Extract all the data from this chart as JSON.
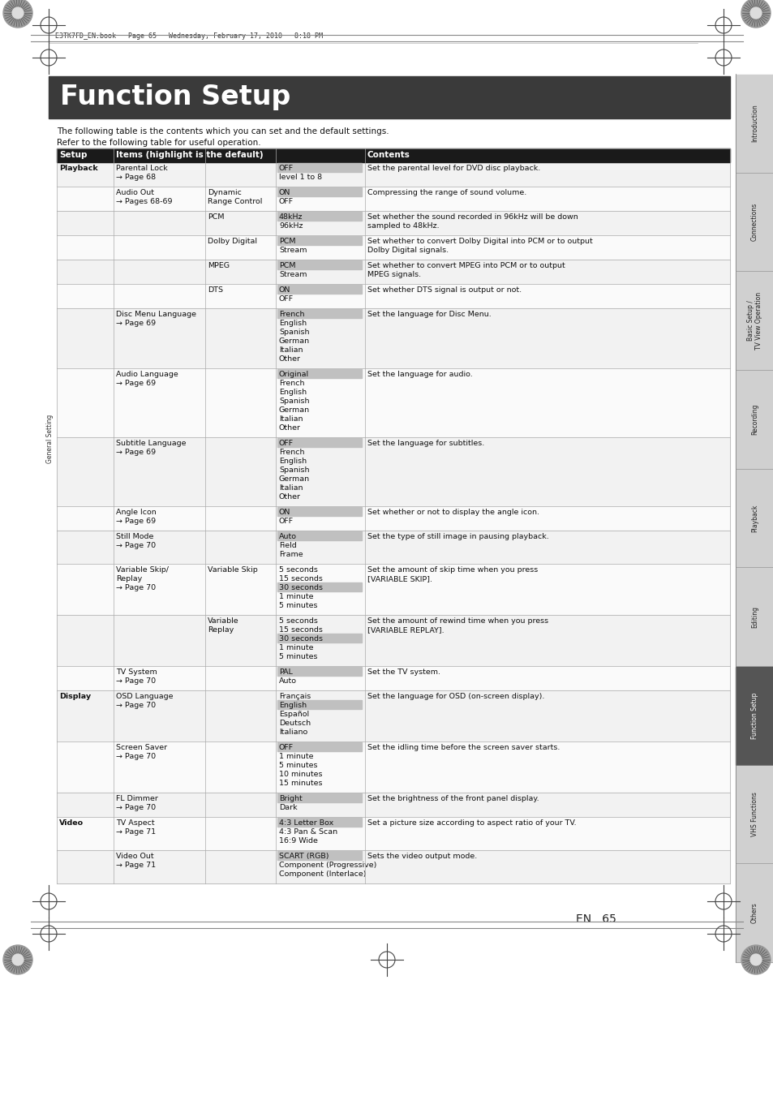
{
  "page_bg": "#ffffff",
  "title_text": "Function Setup",
  "title_bg": "#3a3a3a",
  "title_color": "#ffffff",
  "header_text": "E3TK7FD_EN.book   Page 65   Wednesday, February 17, 2010   8:18 PM",
  "footer_text": "EN   65",
  "intro_line1": "The following table is the contents which you can set and the default settings.",
  "intro_line2": "Refer to the following table for useful operation.",
  "col_header_bg": "#1a1a1a",
  "col_header_color": "#ffffff",
  "sidebar_labels": [
    "Introduction",
    "Connections",
    "Basic Setup /\nTV View Operation",
    "Recording",
    "Playback",
    "Editing",
    "Function Setup",
    "VHS Functions",
    "Others"
  ],
  "sidebar_active": "Function Setup",
  "sidebar_bg": "#d0d0d0",
  "sidebar_active_bg": "#555555",
  "sidebar_active_color": "#ffffff",
  "highlight_bg": "#c0c0c0",
  "table_rows": [
    {
      "setup": "Playback",
      "item1": "Parental Lock\n→ Page 68",
      "item2": "",
      "item3": "OFF\nlevel 1 to 8",
      "default_idx": 0,
      "contents": "Set the parental level for DVD disc playback."
    },
    {
      "setup": "",
      "item1": "Audio Out\n→ Pages 68-69",
      "item2": "Dynamic\nRange Control",
      "item3": "ON\nOFF",
      "default_idx": 0,
      "contents": "Compressing the range of sound volume."
    },
    {
      "setup": "",
      "item1": "",
      "item2": "PCM",
      "item3": "48kHz\n96kHz",
      "default_idx": 0,
      "contents": "Set whether the sound recorded in 96kHz will be down\nsampled to 48kHz."
    },
    {
      "setup": "",
      "item1": "",
      "item2": "Dolby Digital",
      "item3": "PCM\nStream",
      "default_idx": 0,
      "contents": "Set whether to convert Dolby Digital into PCM or to output\nDolby Digital signals."
    },
    {
      "setup": "",
      "item1": "",
      "item2": "MPEG",
      "item3": "PCM\nStream",
      "default_idx": 0,
      "contents": "Set whether to convert MPEG into PCM or to output\nMPEG signals."
    },
    {
      "setup": "",
      "item1": "",
      "item2": "DTS",
      "item3": "ON\nOFF",
      "default_idx": 0,
      "contents": "Set whether DTS signal is output or not."
    },
    {
      "setup": "",
      "item1": "Disc Menu Language\n→ Page 69",
      "item2": "",
      "item3": "French\nEnglish\nSpanish\nGerman\nItalian\nOther",
      "default_idx": 0,
      "contents": "Set the language for Disc Menu."
    },
    {
      "setup": "",
      "item1": "Audio Language\n→ Page 69",
      "item2": "",
      "item3": "Original\nFrench\nEnglish\nSpanish\nGerman\nItalian\nOther",
      "default_idx": 0,
      "contents": "Set the language for audio."
    },
    {
      "setup": "",
      "item1": "Subtitle Language\n→ Page 69",
      "item2": "",
      "item3": "OFF\nFrench\nEnglish\nSpanish\nGerman\nItalian\nOther",
      "default_idx": 0,
      "contents": "Set the language for subtitles."
    },
    {
      "setup": "",
      "item1": "Angle Icon\n→ Page 69",
      "item2": "",
      "item3": "ON\nOFF",
      "default_idx": 0,
      "contents": "Set whether or not to display the angle icon."
    },
    {
      "setup": "",
      "item1": "Still Mode\n→ Page 70",
      "item2": "",
      "item3": "Auto\nField\nFrame",
      "default_idx": 0,
      "contents": "Set the type of still image in pausing playback."
    },
    {
      "setup": "",
      "item1": "Variable Skip/\nReplay\n→ Page 70",
      "item2": "Variable Skip",
      "item3": "5 seconds\n15 seconds\n30 seconds\n1 minute\n5 minutes",
      "default_idx": 2,
      "contents": "Set the amount of skip time when you press\n[VARIABLE SKIP]."
    },
    {
      "setup": "",
      "item1": "",
      "item2": "Variable\nReplay",
      "item3": "5 seconds\n15 seconds\n30 seconds\n1 minute\n5 minutes",
      "default_idx": 2,
      "contents": "Set the amount of rewind time when you press\n[VARIABLE REPLAY]."
    },
    {
      "setup": "",
      "item1": "TV System\n→ Page 70",
      "item2": "",
      "item3": "PAL\nAuto",
      "default_idx": 0,
      "contents": "Set the TV system."
    },
    {
      "setup": "Display",
      "item1": "OSD Language\n→ Page 70",
      "item2": "",
      "item3": "Français\nEnglish\nEspañol\nDeutsch\nItaliano",
      "default_idx": 1,
      "contents": "Set the language for OSD (on-screen display)."
    },
    {
      "setup": "",
      "item1": "Screen Saver\n→ Page 70",
      "item2": "",
      "item3": "OFF\n1 minute\n5 minutes\n10 minutes\n15 minutes",
      "default_idx": 0,
      "contents": "Set the idling time before the screen saver starts."
    },
    {
      "setup": "",
      "item1": "FL Dimmer\n→ Page 70",
      "item2": "",
      "item3": "Bright\nDark",
      "default_idx": 0,
      "contents": "Set the brightness of the front panel display."
    },
    {
      "setup": "Video",
      "item1": "TV Aspect\n→ Page 71",
      "item2": "",
      "item3": "4:3 Letter Box\n4:3 Pan & Scan\n16:9 Wide",
      "default_idx": 0,
      "contents": "Set a picture size according to aspect ratio of your TV."
    },
    {
      "setup": "",
      "item1": "Video Out\n→ Page 71",
      "item2": "",
      "item3": "SCART (RGB)\nComponent (Progressive)\nComponent (Interlace)",
      "default_idx": 0,
      "contents": "Sets the video output mode."
    }
  ],
  "general_setting_label": "General Setting"
}
